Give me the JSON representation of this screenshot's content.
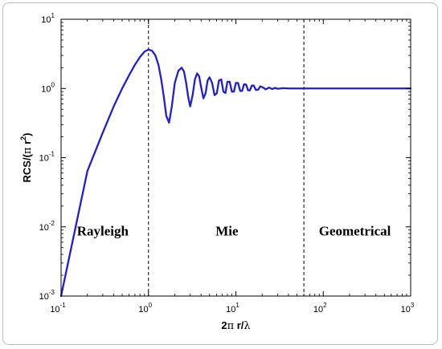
{
  "chart_data": {
    "type": "line",
    "title": "",
    "xlabel_parts": [
      "2",
      "π",
      " r/",
      "λ"
    ],
    "ylabel_parts": [
      "RCS/(",
      "π",
      " r",
      "2",
      ")"
    ],
    "xscale": "log",
    "yscale": "log",
    "xlim": [
      0.1,
      1000
    ],
    "ylim": [
      0.001,
      10
    ],
    "grid": false,
    "legend": "none",
    "x_ticks": [
      {
        "base": "10",
        "exp": "-1"
      },
      {
        "base": "10",
        "exp": "0"
      },
      {
        "base": "10",
        "exp": "1"
      },
      {
        "base": "10",
        "exp": "2"
      },
      {
        "base": "10",
        "exp": "3"
      }
    ],
    "y_ticks": [
      {
        "base": "10",
        "exp": "-3"
      },
      {
        "base": "10",
        "exp": "-2"
      },
      {
        "base": "10",
        "exp": "-1"
      },
      {
        "base": "10",
        "exp": "0"
      },
      {
        "base": "10",
        "exp": "1"
      }
    ],
    "series": [
      {
        "color": "#1f1fd6",
        "x": [
          0.1,
          0.2,
          0.3,
          0.4,
          0.5,
          0.6,
          0.7,
          0.8,
          0.9,
          1.0,
          1.1,
          1.2,
          1.3,
          1.4,
          1.5,
          1.6,
          1.72,
          1.85,
          2.0,
          2.2,
          2.4,
          2.55,
          2.7,
          2.85,
          3.0,
          3.2,
          3.4,
          3.6,
          3.8,
          4.0,
          4.25,
          4.5,
          4.75,
          5.0,
          5.35,
          5.7,
          6.05,
          6.4,
          6.8,
          7.2,
          7.6,
          8.0,
          8.5,
          9.0,
          9.5,
          10.0,
          10.6,
          11.2,
          11.8,
          12.4,
          13.1,
          13.8,
          14.5,
          15.2,
          16.0,
          17.0,
          18.0,
          19.0,
          20.0,
          22.0,
          24.0,
          26.0,
          28.0,
          30.0,
          35.0,
          40.0,
          50.0,
          60.0,
          80.0,
          100.0,
          200.0,
          500.0,
          1000.0
        ],
        "y": [
          0.001,
          0.064,
          0.23,
          0.55,
          1.0,
          1.55,
          2.2,
          2.85,
          3.4,
          3.65,
          3.5,
          3.0,
          2.2,
          1.35,
          0.75,
          0.4,
          0.32,
          0.55,
          1.2,
          1.8,
          2.0,
          1.75,
          1.2,
          0.75,
          0.55,
          0.8,
          1.35,
          1.65,
          1.5,
          1.05,
          0.72,
          0.85,
          1.3,
          1.45,
          1.2,
          0.8,
          0.85,
          1.3,
          1.35,
          0.9,
          0.86,
          1.25,
          1.25,
          0.9,
          0.9,
          1.2,
          1.2,
          0.92,
          0.92,
          1.15,
          1.14,
          0.94,
          0.94,
          1.1,
          1.1,
          0.95,
          0.96,
          1.07,
          1.05,
          0.97,
          1.03,
          0.98,
          1.02,
          0.99,
          1.01,
          1.0,
          1.0,
          1.0,
          1.0,
          1.0,
          1.0,
          1.0,
          1.0
        ]
      }
    ],
    "boundaries": [
      1.0,
      60.0
    ],
    "regions": [
      {
        "label": "Rayleigh",
        "x": 0.3
      },
      {
        "label": "Mie",
        "x": 7.9
      },
      {
        "label": "Geometrical",
        "x": 230
      }
    ],
    "regions_y": 0.0075
  }
}
